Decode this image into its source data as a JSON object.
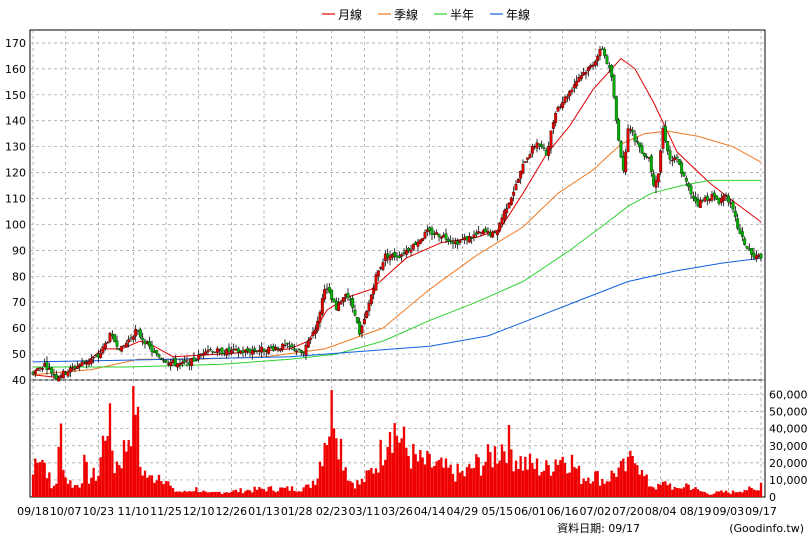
{
  "legend": [
    {
      "label": "月線",
      "color": "#e00000"
    },
    {
      "label": "季線",
      "color": "#f07820"
    },
    {
      "label": "半年",
      "color": "#30d030"
    },
    {
      "label": "年線",
      "color": "#1060e0"
    }
  ],
  "footer": {
    "date_text": "資料日期: 09/17",
    "source_text": "(Goodinfo.tw)"
  },
  "colors": {
    "up": "#e00000",
    "down": "#00b000",
    "grid": "#9a9a9a",
    "volume": "#f00000"
  },
  "chart_data": [
    {
      "type": "candlestick",
      "title": "",
      "x_tick_labels": [
        "09/18",
        "10/07",
        "10/23",
        "11/10",
        "11/25",
        "12/10",
        "12/26",
        "01/13",
        "01/28",
        "02/23",
        "03/11",
        "03/26",
        "04/14",
        "04/29",
        "05/15",
        "06/01",
        "06/16",
        "07/02",
        "07/20",
        "08/04",
        "08/19",
        "09/03",
        "09/17"
      ],
      "ylim": [
        40,
        175
      ],
      "y_ticks": [
        40,
        50,
        60,
        70,
        80,
        90,
        100,
        110,
        120,
        130,
        140,
        150,
        160,
        170
      ],
      "grid": true,
      "legend_position": "top-center",
      "close_anchor_points": [
        [
          0,
          43
        ],
        [
          5,
          46
        ],
        [
          10,
          41
        ],
        [
          16,
          44
        ],
        [
          22,
          47
        ],
        [
          28,
          49
        ],
        [
          33,
          57
        ],
        [
          38,
          52
        ],
        [
          44,
          59
        ],
        [
          48,
          55
        ],
        [
          52,
          50
        ],
        [
          58,
          47
        ],
        [
          64,
          46
        ],
        [
          70,
          48
        ],
        [
          74,
          52
        ],
        [
          80,
          51
        ],
        [
          90,
          51
        ],
        [
          100,
          52
        ],
        [
          108,
          53
        ],
        [
          112,
          52
        ],
        [
          116,
          50
        ],
        [
          118,
          55
        ],
        [
          122,
          62
        ],
        [
          125,
          76
        ],
        [
          127,
          73
        ],
        [
          130,
          67
        ],
        [
          134,
          74
        ],
        [
          138,
          66
        ],
        [
          140,
          57
        ],
        [
          143,
          66
        ],
        [
          147,
          80
        ],
        [
          151,
          88
        ],
        [
          157,
          88
        ],
        [
          163,
          92
        ],
        [
          169,
          97
        ],
        [
          175,
          96
        ],
        [
          181,
          93
        ],
        [
          187,
          95
        ],
        [
          193,
          97
        ],
        [
          198,
          96
        ],
        [
          202,
          105
        ],
        [
          207,
          115
        ],
        [
          211,
          125
        ],
        [
          216,
          132
        ],
        [
          220,
          127
        ],
        [
          224,
          144
        ],
        [
          229,
          150
        ],
        [
          234,
          157
        ],
        [
          239,
          161
        ],
        [
          244,
          168
        ],
        [
          248,
          157
        ],
        [
          250,
          140
        ],
        [
          253,
          120
        ],
        [
          255,
          138
        ],
        [
          258,
          133
        ],
        [
          262,
          127
        ],
        [
          264,
          126
        ],
        [
          266,
          116
        ],
        [
          268,
          120
        ],
        [
          270,
          137
        ],
        [
          273,
          125
        ],
        [
          276,
          125
        ],
        [
          279,
          118
        ],
        [
          282,
          112
        ],
        [
          285,
          108
        ],
        [
          288,
          110
        ],
        [
          291,
          111
        ],
        [
          294,
          109
        ],
        [
          297,
          112
        ],
        [
          300,
          105
        ],
        [
          303,
          96
        ],
        [
          306,
          91
        ],
        [
          309,
          87
        ],
        [
          312,
          88
        ]
      ],
      "month_ma_points": [
        [
          0,
          42
        ],
        [
          10,
          41
        ],
        [
          20,
          45
        ],
        [
          30,
          52
        ],
        [
          38,
          52
        ],
        [
          46,
          55
        ],
        [
          52,
          53
        ],
        [
          60,
          49
        ],
        [
          80,
          50
        ],
        [
          110,
          52
        ],
        [
          118,
          55
        ],
        [
          126,
          67
        ],
        [
          135,
          72
        ],
        [
          145,
          75
        ],
        [
          160,
          87
        ],
        [
          175,
          93
        ],
        [
          190,
          95
        ],
        [
          200,
          98
        ],
        [
          210,
          112
        ],
        [
          220,
          127
        ],
        [
          230,
          138
        ],
        [
          240,
          152
        ],
        [
          246,
          158
        ],
        [
          252,
          164
        ],
        [
          258,
          160
        ],
        [
          266,
          147
        ],
        [
          276,
          128
        ],
        [
          290,
          116
        ],
        [
          300,
          109
        ],
        [
          312,
          101
        ]
      ],
      "quarter_ma_points": [
        [
          0,
          42
        ],
        [
          25,
          44
        ],
        [
          45,
          48
        ],
        [
          70,
          48
        ],
        [
          100,
          49
        ],
        [
          125,
          52
        ],
        [
          150,
          60
        ],
        [
          170,
          75
        ],
        [
          190,
          88
        ],
        [
          210,
          99
        ],
        [
          225,
          112
        ],
        [
          240,
          121
        ],
        [
          252,
          131
        ],
        [
          262,
          135
        ],
        [
          272,
          136
        ],
        [
          285,
          134
        ],
        [
          300,
          130
        ],
        [
          312,
          124
        ]
      ],
      "half_year_ma_points": [
        [
          0,
          45
        ],
        [
          40,
          45
        ],
        [
          80,
          46
        ],
        [
          110,
          48
        ],
        [
          130,
          50
        ],
        [
          150,
          55
        ],
        [
          170,
          63
        ],
        [
          190,
          70
        ],
        [
          210,
          78
        ],
        [
          230,
          90
        ],
        [
          245,
          100
        ],
        [
          255,
          107
        ],
        [
          265,
          112
        ],
        [
          278,
          115
        ],
        [
          290,
          117
        ],
        [
          312,
          117
        ]
      ],
      "year_ma_points": [
        [
          0,
          47
        ],
        [
          60,
          48
        ],
        [
          110,
          49
        ],
        [
          140,
          51
        ],
        [
          170,
          53
        ],
        [
          195,
          57
        ],
        [
          215,
          64
        ],
        [
          235,
          71
        ],
        [
          255,
          78
        ],
        [
          275,
          82
        ],
        [
          295,
          85
        ],
        [
          312,
          87
        ]
      ]
    },
    {
      "type": "bar",
      "ylim": [
        0,
        65000
      ],
      "y_tick_labels": [
        "0",
        "10,000",
        "20,000",
        "30,000",
        "40,000",
        "50,000",
        "60,000"
      ],
      "volume_anchor_points": [
        [
          0,
          14000
        ],
        [
          2,
          31000
        ],
        [
          4,
          24000
        ],
        [
          6,
          18000
        ],
        [
          8,
          5000
        ],
        [
          10,
          10000
        ],
        [
          12,
          40000
        ],
        [
          14,
          12000
        ],
        [
          16,
          9000
        ],
        [
          18,
          7000
        ],
        [
          20,
          8000
        ],
        [
          22,
          19000
        ],
        [
          24,
          12000
        ],
        [
          28,
          14000
        ],
        [
          32,
          52000
        ],
        [
          35,
          19000
        ],
        [
          38,
          25000
        ],
        [
          40,
          32000
        ],
        [
          44,
          65000
        ],
        [
          46,
          19000
        ],
        [
          50,
          11000
        ],
        [
          55,
          15000
        ],
        [
          60,
          4000
        ],
        [
          65,
          3000
        ],
        [
          70,
          5000
        ],
        [
          75,
          2000
        ],
        [
          80,
          3000
        ],
        [
          90,
          4000
        ],
        [
          100,
          5000
        ],
        [
          110,
          5000
        ],
        [
          118,
          6000
        ],
        [
          122,
          14000
        ],
        [
          125,
          38000
        ],
        [
          127,
          45000
        ],
        [
          129,
          61000
        ],
        [
          131,
          40000
        ],
        [
          133,
          25000
        ],
        [
          136,
          10000
        ],
        [
          140,
          8000
        ],
        [
          143,
          12000
        ],
        [
          147,
          20000
        ],
        [
          150,
          30000
        ],
        [
          153,
          48000
        ],
        [
          155,
          42000
        ],
        [
          158,
          35000
        ],
        [
          161,
          27000
        ],
        [
          165,
          22000
        ],
        [
          170,
          20000
        ],
        [
          175,
          18000
        ],
        [
          180,
          15000
        ],
        [
          185,
          14000
        ],
        [
          190,
          20000
        ],
        [
          195,
          23000
        ],
        [
          200,
          30000
        ],
        [
          203,
          35000
        ],
        [
          206,
          26000
        ],
        [
          210,
          21000
        ],
        [
          215,
          19000
        ],
        [
          220,
          17000
        ],
        [
          225,
          25000
        ],
        [
          230,
          24000
        ],
        [
          235,
          12000
        ],
        [
          240,
          14000
        ],
        [
          245,
          10000
        ],
        [
          250,
          16000
        ],
        [
          255,
          18000
        ],
        [
          258,
          32000
        ],
        [
          261,
          14000
        ],
        [
          264,
          8000
        ],
        [
          268,
          6000
        ],
        [
          272,
          9000
        ],
        [
          276,
          4000
        ],
        [
          280,
          8000
        ],
        [
          285,
          4000
        ],
        [
          290,
          2000
        ],
        [
          295,
          3000
        ],
        [
          300,
          3000
        ],
        [
          305,
          5000
        ],
        [
          310,
          4000
        ],
        [
          312,
          9000
        ]
      ]
    }
  ]
}
